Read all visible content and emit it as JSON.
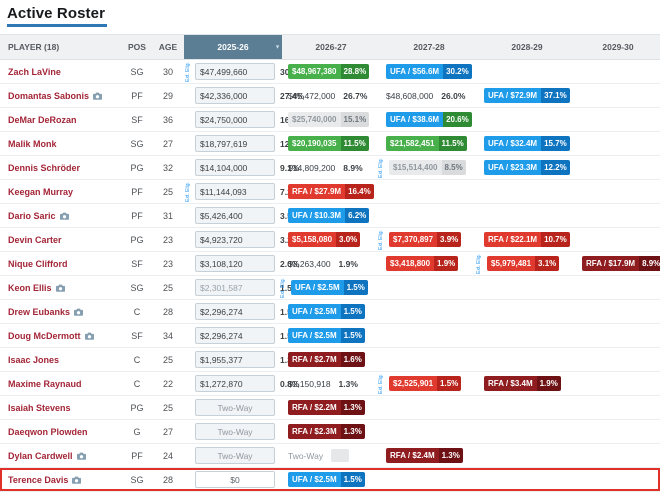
{
  "page": {
    "title": "Active Roster"
  },
  "colors": {
    "green": "#47b04b",
    "green_dark": "#2e8b33",
    "blue": "#1e9be9",
    "blue_dark": "#0f74c0",
    "red": "#e0392e",
    "red_dark": "#b8241b",
    "maroon": "#8f1d20",
    "maroon_dark": "#6e1114",
    "gray": "#e9eaeb",
    "gray_dark": "#d9dbdd",
    "header_dark": "#5b7e94",
    "player_link": "#a32638",
    "highlight": "#e0302a",
    "ext": "#2196f3"
  },
  "table": {
    "columns": [
      "PLAYER (18)",
      "POS",
      "AGE",
      "2025-26",
      "2026-27",
      "2027-28",
      "2028-29",
      "2029-30"
    ],
    "ext_label": "Ext. Elig.",
    "rows": [
      {
        "player": "Zach LaVine",
        "icon": false,
        "pos": "SG",
        "age": "30",
        "highlight": false,
        "cells": [
          {
            "type": "input",
            "value": "$47,499,660",
            "pct": "30.7%",
            "ext": true
          },
          {
            "type": "badge",
            "color": "green",
            "label": "$48,967,380",
            "pct": "28.8%"
          },
          {
            "type": "badge",
            "color": "blue",
            "label": "UFA / $56.6M",
            "pct": "30.2%"
          },
          null,
          null
        ]
      },
      {
        "player": "Domantas Sabonis",
        "icon": true,
        "pos": "PF",
        "age": "29",
        "highlight": false,
        "cells": [
          {
            "type": "input",
            "value": "$42,336,000",
            "pct": "27.4%"
          },
          {
            "type": "plain",
            "label": "$45,472,000",
            "pct": "26.7%"
          },
          {
            "type": "plain",
            "label": "$48,608,000",
            "pct": "26.0%"
          },
          {
            "type": "badge",
            "color": "blue",
            "label": "UFA / $72.9M",
            "pct": "37.1%"
          },
          null
        ]
      },
      {
        "player": "DeMar DeRozan",
        "icon": false,
        "pos": "SF",
        "age": "36",
        "highlight": false,
        "cells": [
          {
            "type": "input",
            "value": "$24,750,000",
            "pct": "16.0%"
          },
          {
            "type": "badge",
            "color": "gray",
            "label": "$25,740,000",
            "pct": "15.1%"
          },
          {
            "type": "badge",
            "color": "blue",
            "label": "UFA / $38.6M",
            "pct": "20.6%",
            "pct_color": "green"
          },
          null,
          null
        ]
      },
      {
        "player": "Malik Monk",
        "icon": false,
        "pos": "SG",
        "age": "27",
        "highlight": false,
        "cells": [
          {
            "type": "input",
            "value": "$18,797,619",
            "pct": "12.2%"
          },
          {
            "type": "badge",
            "color": "green",
            "label": "$20,190,035",
            "pct": "11.5%"
          },
          {
            "type": "badge",
            "color": "green",
            "label": "$21,582,451",
            "pct": "11.5%"
          },
          {
            "type": "badge",
            "color": "blue",
            "label": "UFA / $32.4M",
            "pct": "15.7%"
          },
          null
        ]
      },
      {
        "player": "Dennis Schröder",
        "icon": false,
        "pos": "PG",
        "age": "32",
        "highlight": false,
        "cells": [
          {
            "type": "input",
            "value": "$14,104,000",
            "pct": "9.1%"
          },
          {
            "type": "plain",
            "label": "$14,809,200",
            "pct": "8.9%"
          },
          {
            "type": "badge",
            "color": "gray",
            "label": "$15,514,400",
            "pct": "8.5%",
            "ext": true
          },
          {
            "type": "badge",
            "color": "blue",
            "label": "UFA / $23.3M",
            "pct": "12.2%"
          },
          null
        ]
      },
      {
        "player": "Keegan Murray",
        "icon": false,
        "pos": "PF",
        "age": "25",
        "highlight": false,
        "cells": [
          {
            "type": "input",
            "value": "$11,144,093",
            "pct": "7.2%",
            "ext": true
          },
          {
            "type": "badge",
            "color": "red",
            "label": "RFA / $27.9M",
            "pct": "16.4%"
          },
          null,
          null,
          null
        ]
      },
      {
        "player": "Dario Saric",
        "icon": true,
        "pos": "PF",
        "age": "31",
        "highlight": false,
        "cells": [
          {
            "type": "input",
            "value": "$5,426,400",
            "pct": "3.5%"
          },
          {
            "type": "badge",
            "color": "blue",
            "label": "UFA / $10.3M",
            "pct": "6.2%"
          },
          null,
          null,
          null
        ]
      },
      {
        "player": "Devin Carter",
        "icon": false,
        "pos": "PG",
        "age": "23",
        "highlight": false,
        "cells": [
          {
            "type": "input",
            "value": "$4,923,720",
            "pct": "3.2%"
          },
          {
            "type": "badge",
            "color": "red",
            "label": "$5,158,080",
            "pct": "3.0%"
          },
          {
            "type": "badge",
            "color": "red",
            "label": "$7,370,897",
            "pct": "3.9%",
            "ext": true
          },
          {
            "type": "badge",
            "color": "red",
            "label": "RFA / $22.1M",
            "pct": "10.7%"
          },
          null
        ]
      },
      {
        "player": "Nique Clifford",
        "icon": false,
        "pos": "SF",
        "age": "23",
        "highlight": false,
        "cells": [
          {
            "type": "input",
            "value": "$3,108,120",
            "pct": "2.0%"
          },
          {
            "type": "plain",
            "label": "$3,263,400",
            "pct": "1.9%"
          },
          {
            "type": "badge",
            "color": "red",
            "label": "$3,418,800",
            "pct": "1.9%"
          },
          {
            "type": "badge",
            "color": "red",
            "label": "$5,979,481",
            "pct": "3.1%",
            "ext": true
          },
          {
            "type": "badge",
            "color": "maroon",
            "label": "RFA / $17.9M",
            "pct": "8.9%"
          }
        ]
      },
      {
        "player": "Keon Ellis",
        "icon": true,
        "pos": "SG",
        "age": "25",
        "highlight": false,
        "cells": [
          {
            "type": "input",
            "value": "$2,301,587",
            "pct": "1.5%",
            "muted": true
          },
          {
            "type": "badge",
            "color": "blue",
            "label": "UFA / $2.5M",
            "pct": "1.5%",
            "ext": true
          },
          null,
          null,
          null
        ]
      },
      {
        "player": "Drew Eubanks",
        "icon": true,
        "pos": "C",
        "age": "28",
        "highlight": false,
        "cells": [
          {
            "type": "input",
            "value": "$2,296,274",
            "pct": "1.5%"
          },
          {
            "type": "badge",
            "color": "blue",
            "label": "UFA / $2.5M",
            "pct": "1.5%"
          },
          null,
          null,
          null
        ]
      },
      {
        "player": "Doug McDermott",
        "icon": true,
        "pos": "SF",
        "age": "34",
        "highlight": false,
        "cells": [
          {
            "type": "input",
            "value": "$2,296,274",
            "pct": "1.5%"
          },
          {
            "type": "badge",
            "color": "blue",
            "label": "UFA / $2.5M",
            "pct": "1.5%"
          },
          null,
          null,
          null
        ]
      },
      {
        "player": "Isaac Jones",
        "icon": false,
        "pos": "C",
        "age": "25",
        "highlight": false,
        "cells": [
          {
            "type": "input",
            "value": "$1,955,377",
            "pct": "1.3%"
          },
          {
            "type": "badge",
            "color": "maroon",
            "label": "RFA / $2.7M",
            "pct": "1.6%"
          },
          null,
          null,
          null
        ]
      },
      {
        "player": "Maxime Raynaud",
        "icon": false,
        "pos": "C",
        "age": "22",
        "highlight": false,
        "cells": [
          {
            "type": "input",
            "value": "$1,272,870",
            "pct": "0.8%"
          },
          {
            "type": "plain",
            "label": "$2,150,918",
            "pct": "1.3%"
          },
          {
            "type": "badge",
            "color": "red",
            "label": "$2,525,901",
            "pct": "1.5%",
            "ext": true
          },
          {
            "type": "badge",
            "color": "maroon",
            "label": "RFA / $3.4M",
            "pct": "1.9%"
          },
          null
        ]
      },
      {
        "player": "Isaiah Stevens",
        "icon": false,
        "pos": "PG",
        "age": "25",
        "highlight": false,
        "cells": [
          {
            "type": "input",
            "value": "Two-Way"
          },
          {
            "type": "badge",
            "color": "maroon",
            "label": "RFA / $2.2M",
            "pct": "1.3%"
          },
          null,
          null,
          null
        ]
      },
      {
        "player": "Daeqwon Plowden",
        "icon": false,
        "pos": "G",
        "age": "27",
        "highlight": false,
        "cells": [
          {
            "type": "input",
            "value": "Two-Way"
          },
          {
            "type": "badge",
            "color": "maroon",
            "label": "RFA / $2.3M",
            "pct": "1.3%"
          },
          null,
          null,
          null
        ]
      },
      {
        "player": "Dylan Cardwell",
        "icon": true,
        "pos": "PF",
        "age": "24",
        "highlight": false,
        "cells": [
          {
            "type": "input",
            "value": "Two-Way"
          },
          {
            "type": "twoway",
            "label": "Two-Way"
          },
          {
            "type": "badge",
            "color": "maroon",
            "label": "RFA / $2.4M",
            "pct": "1.3%"
          },
          null,
          null
        ]
      },
      {
        "player": "Terence Davis",
        "icon": true,
        "pos": "SG",
        "age": "28",
        "highlight": true,
        "cells": [
          {
            "type": "input",
            "value": "$0",
            "active": true
          },
          {
            "type": "badge",
            "color": "blue",
            "label": "UFA / $2.5M",
            "pct": "1.5%"
          },
          null,
          null,
          null
        ]
      }
    ]
  }
}
